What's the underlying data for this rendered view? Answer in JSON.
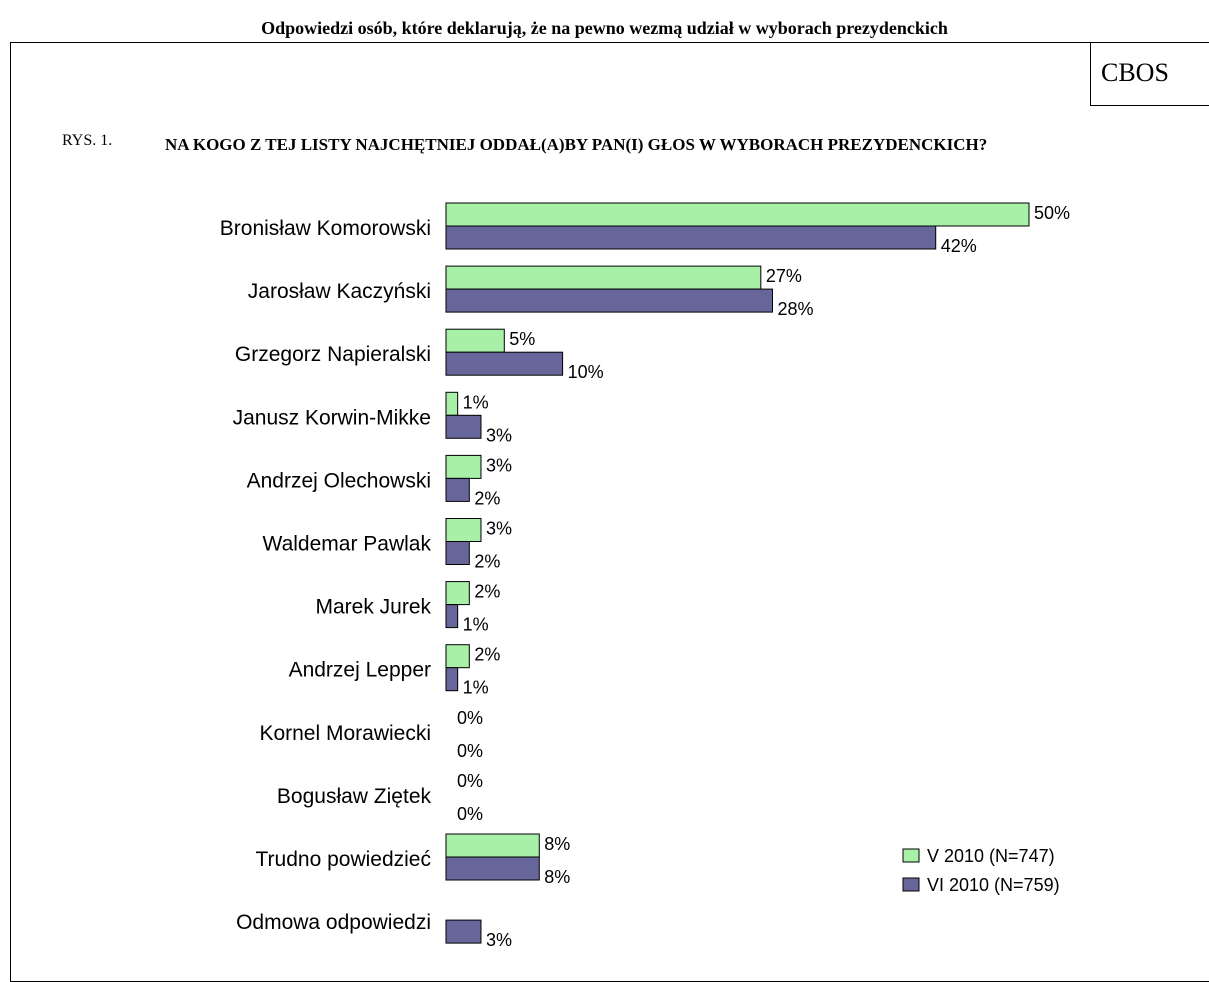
{
  "header": "Odpowiedzi osób, które deklarują, że na pewno wezmą udział w wyborach prezydenckich",
  "source": "CBOS",
  "figure_label": "RYS. 1.",
  "question": "NA KOGO Z TEJ LISTY NAJCHĘTNIEJ ODDAŁ(A)BY PAN(I) GŁOS W WYBORACH PREZYDENCKICH?",
  "chart_data": {
    "type": "bar",
    "orientation": "horizontal",
    "categories": [
      "Bronisław Komorowski",
      "Jarosław Kaczyński",
      "Grzegorz Napieralski",
      "Janusz Korwin-Mikke",
      "Andrzej Olechowski",
      "Waldemar Pawlak",
      "Marek Jurek",
      "Andrzej Lepper",
      "Kornel Morawiecki",
      "Bogusław Ziętek",
      "Trudno powiedzieć",
      "Odmowa odpowiedzi"
    ],
    "series": [
      {
        "name": "V 2010 (N=747)",
        "color": "#a8f0a8",
        "values": [
          50,
          27,
          5,
          1,
          3,
          3,
          2,
          2,
          0,
          0,
          8,
          null
        ],
        "labels": [
          "50%",
          "27%",
          "5%",
          "1%",
          "3%",
          "3%",
          "2%",
          "2%",
          "0%",
          "0%",
          "8%",
          ""
        ]
      },
      {
        "name": "VI 2010 (N=759)",
        "color": "#66669a",
        "values": [
          42,
          28,
          10,
          3,
          2,
          2,
          1,
          1,
          0,
          0,
          8,
          3
        ],
        "labels": [
          "42%",
          "28%",
          "10%",
          "3%",
          "2%",
          "2%",
          "1%",
          "1%",
          "0%",
          "0%",
          "8%",
          "3%"
        ]
      }
    ],
    "xlim": [
      0,
      50
    ],
    "legend_position": "bottom-right",
    "grid": false
  }
}
